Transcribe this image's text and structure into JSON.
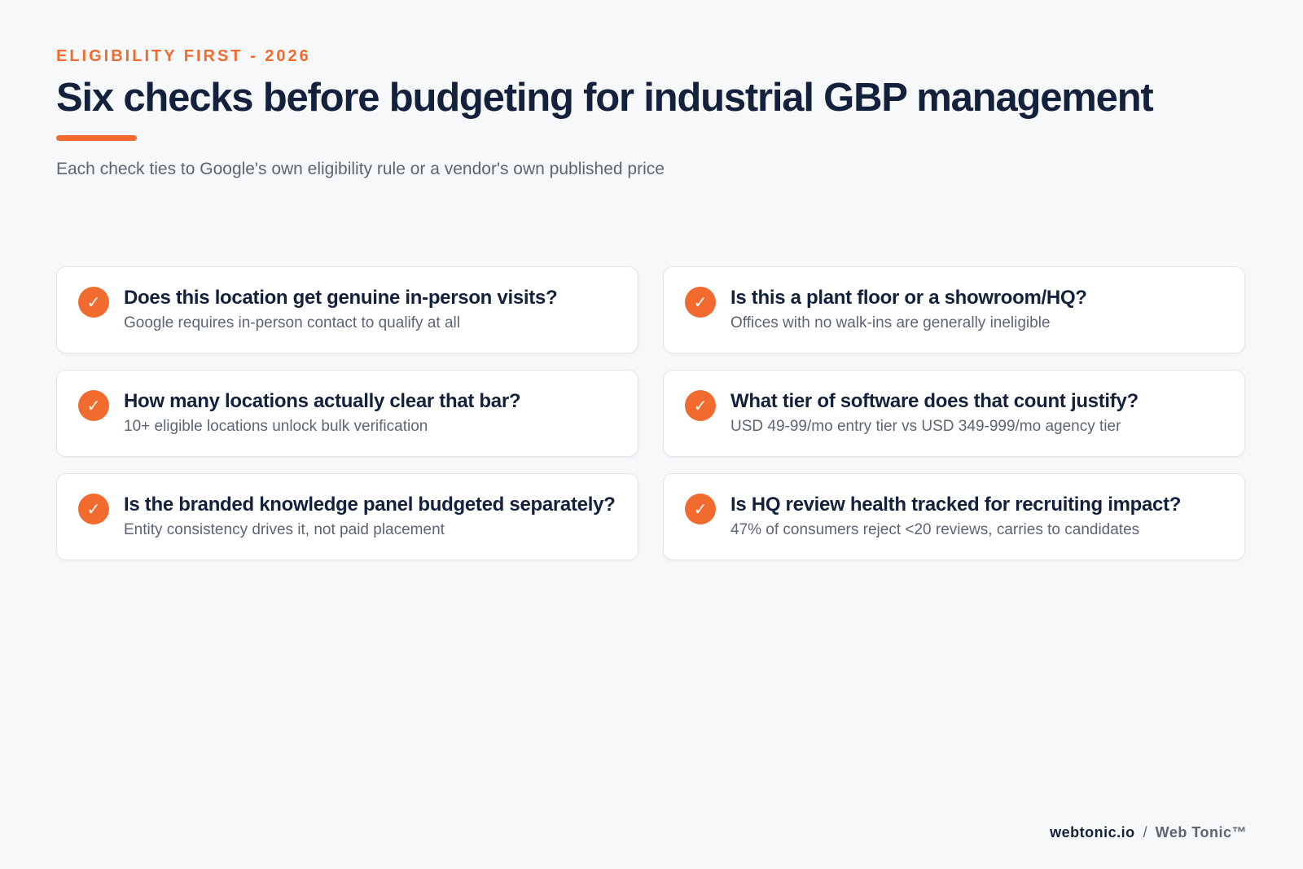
{
  "header": {
    "eyebrow": "ELIGIBILITY FIRST - 2026",
    "title": "Six checks before budgeting for industrial GBP management",
    "subtitle": "Each check ties to Google's own eligibility rule or a vendor's own published price"
  },
  "checks": [
    {
      "question": "Does this location get genuine in-person visits?",
      "answer": "Google requires in-person contact to qualify at all"
    },
    {
      "question": "Is this a plant floor or a showroom/HQ?",
      "answer": "Offices with no walk-ins are generally ineligible"
    },
    {
      "question": "How many locations actually clear that bar?",
      "answer": "10+ eligible locations unlock bulk verification"
    },
    {
      "question": "What tier of software does that count justify?",
      "answer": "USD 49-99/mo entry tier vs USD 349-999/mo agency tier"
    },
    {
      "question": "Is the branded knowledge panel budgeted separately?",
      "answer": "Entity consistency drives it, not paid placement"
    },
    {
      "question": "Is HQ review health tracked for recruiting impact?",
      "answer": "47% of consumers reject <20 reviews, carries to candidates"
    }
  ],
  "check_icon": {
    "glyph": "✓",
    "name": "checkmark-icon",
    "color": "#f26b2e"
  },
  "footer": {
    "domain": "webtonic.io",
    "separator": "/",
    "brand": "Web Tonic™"
  },
  "colors": {
    "accent": "#f26b2e",
    "heading": "#13213d",
    "muted": "#5d6574",
    "background": "#f6f8fa",
    "card": "#ffffff"
  }
}
